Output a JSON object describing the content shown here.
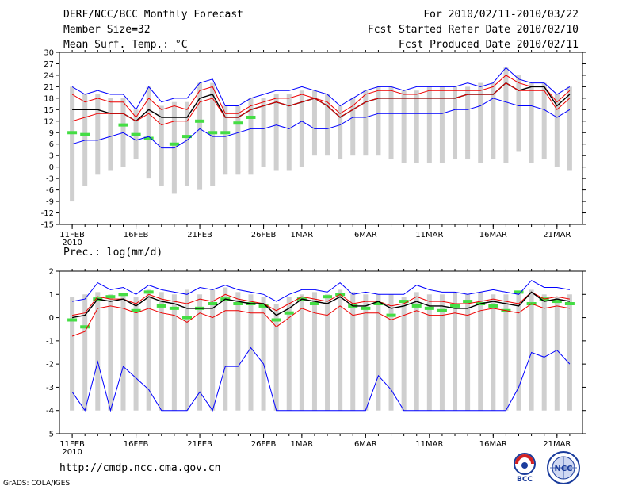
{
  "header": {
    "title": "DERF/NCC/BCC Monthly Forecast",
    "member": "Member Size=32",
    "variable": "Mean Surf. Temp.: °C",
    "range": "For 2010/02/11-2010/03/22",
    "refer": "Fcst Started Refer Date 2010/02/10",
    "produced": "Fcst Produced Date 2010/02/11"
  },
  "footer": {
    "url": "http://cmdp.ncc.cma.gov.cn",
    "credit": "GrADS: COLA/IGES",
    "logo_bcc": "BCC",
    "logo_ncc": "NCC"
  },
  "colors": {
    "bar": "#cfcfcf",
    "max_line": "#0000ff",
    "min_line": "#0000ff",
    "upper_line": "#ee0000",
    "lower_line": "#ee0000",
    "mean_line": "#000000",
    "obs": "#44dd44"
  },
  "chart_data": [
    {
      "type": "line",
      "title": "Mean Surf. Temp.: °C",
      "x_ticks": [
        "11FEB",
        "16FEB",
        "21FEB",
        "26FEB",
        "1MAR",
        "6MAR",
        "11MAR",
        "16MAR",
        "21MAR"
      ],
      "x_tick_days": [
        1,
        6,
        11,
        16,
        19,
        24,
        29,
        34,
        39
      ],
      "year_label": "2010",
      "y_ticks": [
        30,
        27,
        24,
        21,
        18,
        15,
        12,
        9,
        6,
        3,
        0,
        -3,
        -6,
        -9,
        -12,
        -15
      ],
      "ylim": [
        -15,
        30
      ],
      "xlim": [
        0,
        41
      ],
      "days": [
        1,
        2,
        3,
        4,
        5,
        6,
        7,
        8,
        9,
        10,
        11,
        12,
        13,
        14,
        15,
        16,
        17,
        18,
        19,
        20,
        21,
        22,
        23,
        24,
        25,
        26,
        27,
        28,
        29,
        30,
        31,
        32,
        33,
        34,
        35,
        36,
        36,
        37,
        38,
        39,
        40
      ],
      "bar_top": [
        21,
        19,
        19,
        18,
        18,
        15,
        21,
        16,
        17,
        17,
        22,
        22,
        16,
        16,
        18,
        18,
        19,
        19,
        20,
        20,
        19,
        16,
        18,
        20,
        21,
        21,
        20,
        20,
        21,
        21,
        21,
        21,
        22,
        22,
        26,
        24,
        24,
        22,
        22,
        19,
        21
      ],
      "bar_bottom": [
        -9,
        -5,
        -2,
        -1,
        0,
        2,
        -3,
        -5,
        -7,
        -5,
        -6,
        -5,
        -2,
        -2,
        -2,
        0,
        -1,
        -1,
        0,
        3,
        3,
        2,
        3,
        3,
        3,
        2,
        1,
        1,
        1,
        1,
        2,
        2,
        1,
        2,
        1,
        4,
        4,
        1,
        2,
        0,
        -1
      ],
      "series": [
        {
          "name": "max",
          "values": [
            21,
            19,
            20,
            19,
            19,
            15,
            21,
            17,
            18,
            18,
            22,
            23,
            16,
            16,
            18,
            19,
            20,
            20,
            21,
            20,
            19,
            16,
            18,
            20,
            21,
            21,
            20,
            21,
            21,
            21,
            21,
            22,
            21,
            22,
            26,
            23,
            23,
            22,
            22,
            19,
            21
          ]
        },
        {
          "name": "upper",
          "values": [
            19,
            17,
            18,
            17,
            17,
            13,
            18,
            15,
            16,
            15,
            20,
            21,
            14,
            14,
            16,
            17,
            18,
            18,
            19,
            18,
            17,
            14,
            16,
            19,
            20,
            20,
            19,
            19,
            20,
            20,
            20,
            20,
            20,
            21,
            24,
            22,
            22,
            21,
            21,
            17,
            20
          ]
        },
        {
          "name": "mean",
          "values": [
            15,
            15,
            15,
            14,
            14,
            12,
            15,
            13,
            13,
            13,
            18,
            19,
            13,
            13,
            15,
            16,
            17,
            16,
            17,
            18,
            16,
            13,
            15,
            17,
            18,
            18,
            18,
            18,
            18,
            18,
            18,
            19,
            19,
            19,
            22,
            20,
            20,
            21,
            21,
            16,
            19
          ]
        },
        {
          "name": "lower",
          "values": [
            12,
            13,
            14,
            14,
            14,
            12,
            14,
            11,
            12,
            12,
            17,
            18,
            13,
            13,
            15,
            16,
            17,
            16,
            17,
            18,
            16,
            13,
            15,
            17,
            18,
            18,
            18,
            18,
            18,
            18,
            18,
            19,
            19,
            19,
            22,
            20,
            20,
            20,
            20,
            15,
            18
          ]
        },
        {
          "name": "min",
          "values": [
            6,
            7,
            7,
            8,
            9,
            7,
            8,
            5,
            5,
            7,
            10,
            8,
            8,
            9,
            10,
            10,
            11,
            10,
            12,
            10,
            10,
            11,
            13,
            13,
            14,
            14,
            14,
            14,
            14,
            14,
            15,
            15,
            16,
            18,
            17,
            16,
            16,
            16,
            15,
            13,
            15
          ]
        }
      ],
      "obs": [
        {
          "day": 1,
          "value": 9
        },
        {
          "day": 2,
          "value": 8.5
        },
        {
          "day": 5,
          "value": 11
        },
        {
          "day": 6,
          "value": 8.5
        },
        {
          "day": 7,
          "value": 7.5
        },
        {
          "day": 9,
          "value": 6
        },
        {
          "day": 10,
          "value": 8
        },
        {
          "day": 11,
          "value": 12
        },
        {
          "day": 12,
          "value": 9
        },
        {
          "day": 13,
          "value": 9
        },
        {
          "day": 14,
          "value": 11.5
        },
        {
          "day": 15,
          "value": 13
        }
      ]
    },
    {
      "type": "line",
      "title": "Prec.: log(mm/d)",
      "x_ticks": [
        "11FEB",
        "16FEB",
        "21FEB",
        "26FEB",
        "1MAR",
        "6MAR",
        "11MAR",
        "16MAR",
        "21MAR"
      ],
      "x_tick_days": [
        1,
        6,
        11,
        16,
        19,
        24,
        29,
        34,
        39
      ],
      "year_label": "2010",
      "y_ticks": [
        2,
        1,
        0,
        -1,
        -2,
        -3,
        -4,
        -5
      ],
      "ylim": [
        -5,
        2
      ],
      "xlim": [
        0,
        41
      ],
      "days": [
        1,
        2,
        3,
        4,
        5,
        6,
        7,
        8,
        9,
        10,
        11,
        12,
        13,
        14,
        15,
        16,
        17,
        18,
        19,
        20,
        21,
        22,
        23,
        24,
        25,
        26,
        27,
        28,
        29,
        30,
        31,
        32,
        33,
        34,
        35,
        36,
        37,
        38,
        39,
        40
      ],
      "bar_top": [
        0.9,
        1.0,
        1.1,
        1.0,
        1.0,
        0.9,
        1.2,
        1.1,
        1.0,
        1.2,
        1.0,
        1.2,
        1.3,
        1.1,
        1.0,
        0.9,
        0.6,
        0.9,
        1.0,
        1.1,
        1.0,
        1.2,
        1.1,
        1.0,
        1.0,
        1.0,
        0.9,
        1.1,
        1.0,
        1.0,
        1.1,
        1.0,
        1.1,
        1.0,
        1.0,
        1.1,
        1.2,
        1.0,
        0.9,
        1.0
      ],
      "bar_bottom": [
        -4,
        -4,
        -4,
        -4,
        -4,
        -4,
        -4,
        -4,
        -4,
        -4,
        -4,
        -4,
        -4,
        -4,
        -4,
        -4,
        -4,
        -4,
        -4,
        -4,
        -4,
        -4,
        -4,
        -4,
        -4,
        -4,
        -4,
        -4,
        -4,
        -4,
        -4,
        -4,
        -4,
        -4,
        -4,
        -4,
        -4,
        -4,
        -4,
        -4
      ],
      "series": [
        {
          "name": "max",
          "values": [
            0.7,
            0.8,
            1.5,
            1.2,
            1.3,
            1.0,
            1.4,
            1.2,
            1.1,
            1.0,
            1.3,
            1.2,
            1.4,
            1.2,
            1.1,
            1.0,
            0.7,
            1.0,
            1.2,
            1.2,
            1.1,
            1.5,
            1.0,
            1.1,
            1.0,
            1.0,
            1.0,
            1.4,
            1.2,
            1.1,
            1.1,
            1.0,
            1.1,
            1.2,
            1.1,
            1.0,
            1.6,
            1.3,
            1.3,
            1.2
          ]
        },
        {
          "name": "upper",
          "values": [
            0.1,
            0.2,
            0.9,
            0.8,
            0.8,
            0.6,
            1.0,
            0.8,
            0.7,
            0.6,
            0.8,
            0.7,
            1.0,
            0.8,
            0.7,
            0.6,
            0.3,
            0.6,
            0.9,
            0.8,
            0.7,
            1.0,
            0.6,
            0.7,
            0.7,
            0.5,
            0.6,
            0.9,
            0.7,
            0.7,
            0.6,
            0.6,
            0.7,
            0.8,
            0.7,
            0.6,
            1.1,
            0.8,
            0.9,
            0.8
          ]
        },
        {
          "name": "mean",
          "values": [
            0.0,
            0.1,
            0.8,
            0.7,
            0.8,
            0.5,
            0.9,
            0.7,
            0.6,
            0.4,
            0.4,
            0.4,
            0.8,
            0.7,
            0.6,
            0.6,
            0.1,
            0.4,
            0.8,
            0.7,
            0.6,
            0.9,
            0.5,
            0.5,
            0.7,
            0.4,
            0.5,
            0.7,
            0.5,
            0.5,
            0.4,
            0.4,
            0.6,
            0.7,
            0.6,
            0.5,
            1.1,
            0.7,
            0.8,
            0.7
          ]
        },
        {
          "name": "lower",
          "values": [
            -0.8,
            -0.6,
            0.4,
            0.5,
            0.4,
            0.2,
            0.4,
            0.2,
            0.1,
            -0.2,
            0.2,
            0.0,
            0.3,
            0.3,
            0.2,
            0.2,
            -0.4,
            0.0,
            0.4,
            0.2,
            0.1,
            0.5,
            0.1,
            0.2,
            0.2,
            -0.1,
            0.1,
            0.3,
            0.1,
            0.1,
            0.2,
            0.1,
            0.3,
            0.4,
            0.3,
            0.2,
            0.6,
            0.4,
            0.5,
            0.4
          ]
        },
        {
          "name": "min",
          "values": [
            -3.2,
            -4.0,
            -1.9,
            -4.0,
            -2.1,
            -2.6,
            -3.1,
            -4.0,
            -4.0,
            -4.0,
            -3.2,
            -4.0,
            -2.1,
            -2.1,
            -1.3,
            -2.0,
            -4.0,
            -4.0,
            -4.0,
            -4.0,
            -4.0,
            -4.0,
            -4.0,
            -4.0,
            -2.5,
            -3.1,
            -4.0,
            -4.0,
            -4.0,
            -4.0,
            -4.0,
            -4.0,
            -4.0,
            -4.0,
            -4.0,
            -3.0,
            -1.5,
            -1.7,
            -1.4,
            -2.0
          ]
        }
      ],
      "obs": [
        {
          "day": 1,
          "value": -0.1
        },
        {
          "day": 2,
          "value": -0.4
        },
        {
          "day": 3,
          "value": 0.8
        },
        {
          "day": 4,
          "value": 0.9
        },
        {
          "day": 5,
          "value": 1.0
        },
        {
          "day": 6,
          "value": 0.3
        },
        {
          "day": 7,
          "value": 1.1
        },
        {
          "day": 8,
          "value": 0.5
        },
        {
          "day": 9,
          "value": 0.4
        },
        {
          "day": 10,
          "value": 0.0
        },
        {
          "day": 11,
          "value": 0.4
        },
        {
          "day": 12,
          "value": 0.6
        },
        {
          "day": 13,
          "value": 0.8
        },
        {
          "day": 14,
          "value": 0.6
        },
        {
          "day": 15,
          "value": 0.6
        },
        {
          "day": 16,
          "value": 0.5
        },
        {
          "day": 17,
          "value": -0.1
        },
        {
          "day": 18,
          "value": 0.2
        },
        {
          "day": 19,
          "value": 0.8
        },
        {
          "day": 20,
          "value": 0.6
        },
        {
          "day": 21,
          "value": 0.9
        },
        {
          "day": 22,
          "value": 1.0
        },
        {
          "day": 23,
          "value": 0.5
        },
        {
          "day": 24,
          "value": 0.4
        },
        {
          "day": 25,
          "value": 0.6
        },
        {
          "day": 26,
          "value": 0.1
        },
        {
          "day": 27,
          "value": 0.7
        },
        {
          "day": 28,
          "value": 0.5
        },
        {
          "day": 29,
          "value": 0.4
        },
        {
          "day": 30,
          "value": 0.3
        },
        {
          "day": 31,
          "value": 0.5
        },
        {
          "day": 32,
          "value": 0.7
        },
        {
          "day": 33,
          "value": 0.6
        },
        {
          "day": 34,
          "value": 0.5
        },
        {
          "day": 35,
          "value": 0.3
        },
        {
          "day": 36,
          "value": 1.1
        },
        {
          "day": 37,
          "value": 0.6
        },
        {
          "day": 38,
          "value": 0.8
        },
        {
          "day": 39,
          "value": 0.7
        },
        {
          "day": 40,
          "value": 0.6
        }
      ]
    }
  ]
}
